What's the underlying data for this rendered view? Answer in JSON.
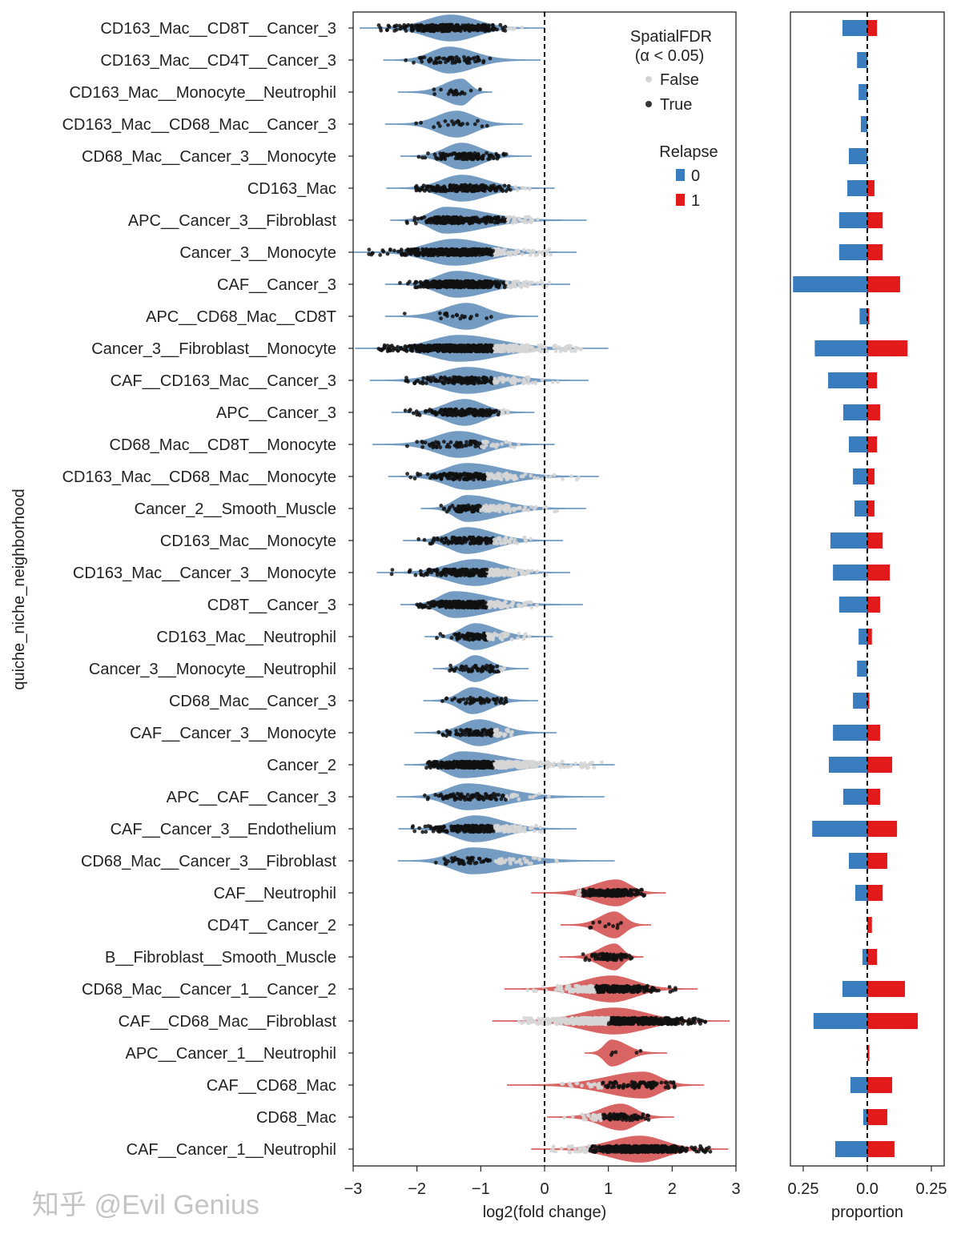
{
  "chart_data": [
    {
      "type": "violin",
      "xlabel": "log2(fold change)",
      "ylabel": "quiche_niche_neighborhood",
      "xlim": [
        -3,
        3
      ],
      "xticks": [
        "−3",
        "−2",
        "−1",
        "0",
        "1",
        "2",
        "3"
      ],
      "reference_line": 0,
      "legend": {
        "position": "top-right",
        "fdr_title": "SpatialFDR",
        "fdr_subtitle": "(α < 0.05)",
        "fdr_entries": [
          {
            "label": "False",
            "color": "#d3d3d3"
          },
          {
            "label": "True",
            "color": "#333333"
          }
        ],
        "relapse_title": "Relapse",
        "relapse_entries": [
          {
            "label": "0",
            "color": "#3a7dbf"
          },
          {
            "label": "1",
            "color": "#e31a1c"
          }
        ]
      },
      "series_colors": {
        "0": "#6d97c0",
        "1": "#d65c5c"
      },
      "rows": [
        {
          "label": "CD163_Mac__CD8T__Cancer_3",
          "relapse": 0,
          "peak": -1.47,
          "min": -2.9,
          "max": 0.0,
          "pmin": -2.6,
          "pmax": -0.3,
          "sig_cut": -0.6,
          "n": 300
        },
        {
          "label": "CD163_Mac__CD4T__Cancer_3",
          "relapse": 0,
          "peak": -1.5,
          "min": -2.53,
          "max": -0.06,
          "pmin": -2.2,
          "pmax": -0.8,
          "sig_cut": null,
          "n": 60
        },
        {
          "label": "CD163_Mac__Monocyte__Neutrophil",
          "relapse": 0,
          "peak": -1.3,
          "min": -2.3,
          "max": -0.82,
          "pmin": -2.1,
          "pmax": -1.0,
          "sig_cut": null,
          "n": 20
        },
        {
          "label": "CD163_Mac__CD68_Mac__Cancer_3",
          "relapse": 0,
          "peak": -1.38,
          "min": -2.5,
          "max": -0.34,
          "pmin": -2.3,
          "pmax": -0.7,
          "sig_cut": null,
          "n": 20
        },
        {
          "label": "CD68_Mac__Cancer_3__Monocyte",
          "relapse": 0,
          "peak": -1.3,
          "min": -2.26,
          "max": -0.2,
          "pmin": -2.1,
          "pmax": -0.6,
          "sig_cut": null,
          "n": 120
        },
        {
          "label": "CD163_Mac",
          "relapse": 0,
          "peak": -1.3,
          "min": -2.48,
          "max": 0.16,
          "pmin": -2.1,
          "pmax": -0.2,
          "sig_cut": -0.5,
          "n": 200
        },
        {
          "label": "APC__Cancer_3__Fibroblast",
          "relapse": 0,
          "peak": -1.55,
          "min": -2.42,
          "max": 0.66,
          "pmin": -2.2,
          "pmax": -0.1,
          "sig_cut": -0.6,
          "n": 250
        },
        {
          "label": "Cancer_3__Monocyte",
          "relapse": 0,
          "peak": -1.42,
          "min": -2.99,
          "max": 0.5,
          "pmin": -2.8,
          "pmax": 0.1,
          "sig_cut": -0.8,
          "n": 500
        },
        {
          "label": "CAF__Cancer_3",
          "relapse": 0,
          "peak": -1.38,
          "min": -2.5,
          "max": 0.4,
          "pmin": -2.3,
          "pmax": 0.1,
          "sig_cut": -0.6,
          "n": 400
        },
        {
          "label": "APC__CD68_Mac__CD8T",
          "relapse": 0,
          "peak": -1.22,
          "min": -2.5,
          "max": -0.1,
          "pmin": -2.2,
          "pmax": -0.8,
          "sig_cut": null,
          "n": 20
        },
        {
          "label": "Cancer_3__Fibroblast__Monocyte",
          "relapse": 0,
          "peak": -1.34,
          "min": -2.97,
          "max": 1.0,
          "pmin": -2.6,
          "pmax": 0.6,
          "sig_cut": -0.8,
          "n": 700
        },
        {
          "label": "CAF__CD163_Mac__Cancer_3",
          "relapse": 0,
          "peak": -1.22,
          "min": -2.74,
          "max": 0.69,
          "pmin": -2.3,
          "pmax": 0.3,
          "sig_cut": -0.8,
          "n": 200
        },
        {
          "label": "APC__Cancer_3",
          "relapse": 0,
          "peak": -1.25,
          "min": -2.4,
          "max": -0.16,
          "pmin": -2.2,
          "pmax": -0.5,
          "sig_cut": -0.7,
          "n": 200
        },
        {
          "label": "CD68_Mac__CD8T__Monocyte",
          "relapse": 0,
          "peak": -1.34,
          "min": -2.7,
          "max": 0.16,
          "pmin": -2.4,
          "pmax": -0.3,
          "sig_cut": -1.0,
          "n": 80
        },
        {
          "label": "CD163_Mac__CD68_Mac__Monocyte",
          "relapse": 0,
          "peak": -1.22,
          "min": -2.45,
          "max": 0.85,
          "pmin": -2.2,
          "pmax": 0.6,
          "sig_cut": -0.9,
          "n": 200
        },
        {
          "label": "Cancer_2__Smooth_Muscle",
          "relapse": 0,
          "peak": -1.22,
          "min": -1.94,
          "max": 0.65,
          "pmin": -1.7,
          "pmax": 0.2,
          "sig_cut": -1.0,
          "n": 150
        },
        {
          "label": "CD163_Mac__Monocyte",
          "relapse": 0,
          "peak": -1.22,
          "min": -2.22,
          "max": 0.29,
          "pmin": -2.0,
          "pmax": -0.2,
          "sig_cut": -0.8,
          "n": 150
        },
        {
          "label": "CD163_Mac__Cancer_3__Monocyte",
          "relapse": 0,
          "peak": -1.09,
          "min": -2.63,
          "max": 0.4,
          "pmin": -2.4,
          "pmax": 0.1,
          "sig_cut": -0.9,
          "n": 300
        },
        {
          "label": "CD8T__Cancer_3",
          "relapse": 0,
          "peak": -1.42,
          "min": -2.26,
          "max": 0.6,
          "pmin": -2.0,
          "pmax": -0.1,
          "sig_cut": -0.9,
          "n": 300
        },
        {
          "label": "CD163_Mac__Neutrophil",
          "relapse": 0,
          "peak": -1.09,
          "min": -1.88,
          "max": 0.13,
          "pmin": -1.7,
          "pmax": -0.2,
          "sig_cut": -0.9,
          "n": 120
        },
        {
          "label": "Cancer_3__Monocyte__Neutrophil",
          "relapse": 0,
          "peak": -1.09,
          "min": -1.75,
          "max": -0.25,
          "pmin": -1.5,
          "pmax": -0.6,
          "sig_cut": -0.7,
          "n": 60
        },
        {
          "label": "CD68_Mac__Cancer_3",
          "relapse": 0,
          "peak": -1.13,
          "min": -1.9,
          "max": -0.1,
          "pmin": -1.6,
          "pmax": -0.6,
          "sig_cut": null,
          "n": 60
        },
        {
          "label": "CAF__Cancer_3__Monocyte",
          "relapse": 0,
          "peak": -1.03,
          "min": -2.04,
          "max": 0.19,
          "pmin": -1.8,
          "pmax": -0.5,
          "sig_cut": -0.8,
          "n": 100
        },
        {
          "label": "Cancer_2",
          "relapse": 0,
          "peak": -1.3,
          "min": -2.2,
          "max": 1.1,
          "pmin": -1.9,
          "pmax": 0.9,
          "sig_cut": -0.8,
          "n": 600
        },
        {
          "label": "APC__CAF__Cancer_3",
          "relapse": 0,
          "peak": -1.22,
          "min": -2.32,
          "max": 0.94,
          "pmin": -1.9,
          "pmax": 0.2,
          "sig_cut": -0.6,
          "n": 100
        },
        {
          "label": "CAF__Cancer_3__Endothelium",
          "relapse": 0,
          "peak": -1.09,
          "min": -2.29,
          "max": 0.5,
          "pmin": -2.1,
          "pmax": 0.0,
          "sig_cut": -0.8,
          "n": 300
        },
        {
          "label": "CD68_Mac__Cancer_3__Fibroblast",
          "relapse": 0,
          "peak": -1.13,
          "min": -2.3,
          "max": 1.1,
          "pmin": -1.8,
          "pmax": 0.3,
          "sig_cut": -0.8,
          "n": 80
        },
        {
          "label": "CAF__Neutrophil",
          "relapse": 1,
          "peak": 1.13,
          "min": -0.21,
          "max": 1.9,
          "pmin": 0.5,
          "pmax": 1.6,
          "sig_cut": 0.6,
          "n": 200
        },
        {
          "label": "CD4T__Cancer_2",
          "relapse": 1,
          "peak": 1.1,
          "min": 0.25,
          "max": 1.67,
          "pmin": 0.55,
          "pmax": 1.35,
          "sig_cut": 0.65,
          "n": 10
        },
        {
          "label": "B__Fibroblast__Smooth_Muscle",
          "relapse": 1,
          "peak": 1.1,
          "min": 0.23,
          "max": 1.55,
          "pmin": 0.6,
          "pmax": 1.4,
          "sig_cut": null,
          "n": 80
        },
        {
          "label": "CD68_Mac__Cancer_1__Cancer_2",
          "relapse": 1,
          "peak": 1.05,
          "min": -0.63,
          "max": 2.4,
          "pmin": -0.3,
          "pmax": 2.1,
          "sig_cut": 0.8,
          "n": 300
        },
        {
          "label": "CAF__CD68_Mac__Fibroblast",
          "relapse": 1,
          "peak": 1.1,
          "min": -0.82,
          "max": 2.9,
          "pmin": -0.4,
          "pmax": 2.55,
          "sig_cut": 1.0,
          "n": 800
        },
        {
          "label": "APC__Cancer_1__Neutrophil",
          "relapse": 1,
          "peak": 1.05,
          "min": 0.63,
          "max": 1.92,
          "pmin": 0.95,
          "pmax": 1.55,
          "sig_cut": null,
          "n": 5
        },
        {
          "label": "CAF__CD68_Mac",
          "relapse": 1,
          "peak": 1.55,
          "min": -0.59,
          "max": 2.5,
          "pmin": 0.2,
          "pmax": 2.1,
          "sig_cut": 0.9,
          "n": 100
        },
        {
          "label": "CD68_Mac",
          "relapse": 1,
          "peak": 1.2,
          "min": 0.04,
          "max": 2.03,
          "pmin": 0.3,
          "pmax": 1.8,
          "sig_cut": 0.9,
          "n": 100
        },
        {
          "label": "CAF__Cancer_1__Neutrophil",
          "relapse": 1,
          "peak": 1.5,
          "min": -0.21,
          "max": 2.88,
          "pmin": 0.1,
          "pmax": 2.6,
          "sig_cut": 0.7,
          "n": 500
        }
      ]
    },
    {
      "type": "bar",
      "orientation": "horizontal",
      "xlabel": "proportion",
      "xlim": [
        -0.3,
        0.3
      ],
      "xticks": [
        "0.25",
        "0.0",
        "0.25"
      ],
      "reference_line": 0,
      "series": [
        {
          "relapse": "0",
          "color": "#3a7dbf",
          "values": [
            -0.097,
            -0.04,
            -0.034,
            -0.025,
            -0.072,
            -0.078,
            -0.11,
            -0.11,
            -0.29,
            -0.03,
            -0.205,
            -0.153,
            -0.094,
            -0.072,
            -0.056,
            -0.05,
            -0.144,
            -0.134,
            -0.11,
            -0.034,
            -0.04,
            -0.056,
            -0.134,
            -0.15,
            -0.094,
            -0.215,
            -0.072,
            -0.047,
            0,
            -0.019,
            -0.097,
            -0.21,
            0,
            -0.066,
            -0.016,
            -0.125
          ]
        },
        {
          "relapse": "1",
          "color": "#e31a1c",
          "values": [
            0.038,
            0,
            0,
            0,
            0,
            0.028,
            0.06,
            0.06,
            0.128,
            0.008,
            0.157,
            0.038,
            0.05,
            0.038,
            0.028,
            0.028,
            0.06,
            0.088,
            0.05,
            0.018,
            0,
            0.008,
            0.05,
            0.097,
            0.05,
            0.116,
            0.078,
            0.06,
            0.018,
            0.038,
            0.147,
            0.197,
            0.008,
            0.097,
            0.078,
            0.106
          ]
        }
      ]
    }
  ],
  "watermark": "知乎 @Evil Genius"
}
